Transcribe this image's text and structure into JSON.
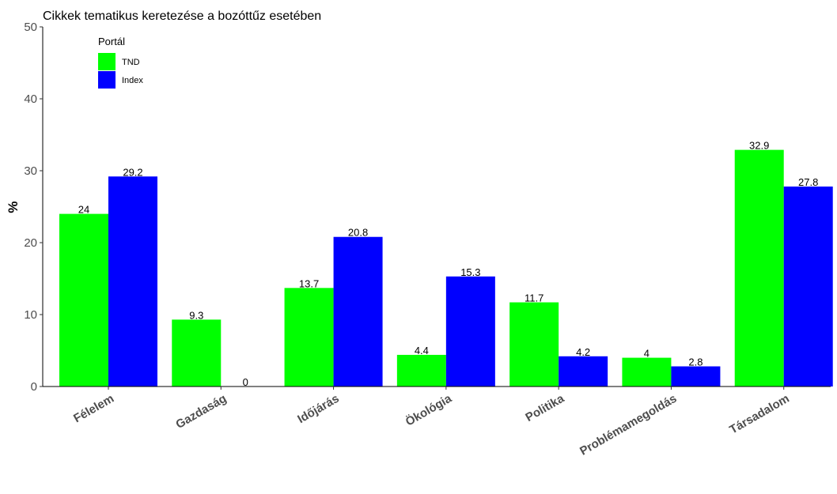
{
  "chart_data": {
    "type": "bar",
    "title": "Cikkek tematikus keretezése a bozóttűz esetében",
    "xlabel": "",
    "ylabel": "%",
    "ylim": [
      0,
      50
    ],
    "yticks": [
      0,
      10,
      20,
      30,
      40,
      50
    ],
    "grid": false,
    "legend": {
      "title": "Portál",
      "position": "top-left"
    },
    "categories": [
      "Félelem",
      "Gazdaság",
      "Időjárás",
      "Ökológia",
      "Politika",
      "Problémamegoldás",
      "Társadalom"
    ],
    "series": [
      {
        "name": "TND",
        "color": "#00ff00",
        "values": [
          24,
          9.3,
          13.7,
          4.4,
          11.7,
          4,
          32.9
        ],
        "labels": [
          "24",
          "9.3",
          "13.7",
          "4.4",
          "11.7",
          "4",
          "32.9"
        ]
      },
      {
        "name": "Index",
        "color": "#0000ff",
        "values": [
          29.2,
          0,
          20.8,
          15.3,
          4.2,
          2.8,
          27.8
        ],
        "labels": [
          "29.2",
          "0",
          "20.8",
          "15.3",
          "4.2",
          "2.8",
          "27.8"
        ]
      }
    ]
  }
}
